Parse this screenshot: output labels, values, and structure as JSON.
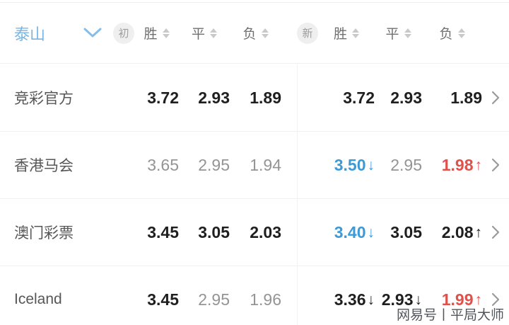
{
  "header": {
    "team": "泰山",
    "initial_badge": "初",
    "new_badge": "新",
    "columns": {
      "win": "胜",
      "draw": "平",
      "lose": "负"
    }
  },
  "rows": [
    {
      "name": "竞彩官方",
      "initial": [
        {
          "value": "3.72",
          "tone": "dark"
        },
        {
          "value": "2.93",
          "tone": "dark"
        },
        {
          "value": "1.89",
          "tone": "dark"
        }
      ],
      "new": [
        {
          "value": "3.72",
          "tone": "dark"
        },
        {
          "value": "2.93",
          "tone": "dark"
        },
        {
          "value": "1.89",
          "tone": "dark"
        }
      ]
    },
    {
      "name": "香港马会",
      "initial": [
        {
          "value": "3.65",
          "tone": "gray"
        },
        {
          "value": "2.95",
          "tone": "gray"
        },
        {
          "value": "1.94",
          "tone": "gray"
        }
      ],
      "new": [
        {
          "value": "3.50",
          "tone": "blue",
          "trend": "down"
        },
        {
          "value": "2.95",
          "tone": "gray"
        },
        {
          "value": "1.98",
          "tone": "red",
          "trend": "up"
        }
      ]
    },
    {
      "name": "澳门彩票",
      "initial": [
        {
          "value": "3.45",
          "tone": "dark"
        },
        {
          "value": "3.05",
          "tone": "dark"
        },
        {
          "value": "2.03",
          "tone": "dark"
        }
      ],
      "new": [
        {
          "value": "3.40",
          "tone": "blue",
          "trend": "down"
        },
        {
          "value": "3.05",
          "tone": "dark"
        },
        {
          "value": "2.08",
          "tone": "dark",
          "trend": "up-dark"
        }
      ]
    },
    {
      "name": "Iceland",
      "initial": [
        {
          "value": "3.45",
          "tone": "dark"
        },
        {
          "value": "2.95",
          "tone": "gray"
        },
        {
          "value": "1.96",
          "tone": "gray"
        }
      ],
      "new": [
        {
          "value": "3.36",
          "tone": "dark",
          "trend": "down-dark"
        },
        {
          "value": "2.93",
          "tone": "dark",
          "trend": "down-dark"
        },
        {
          "value": "1.99",
          "tone": "red",
          "trend": "up"
        }
      ]
    }
  ],
  "trend_arrows": {
    "down": "↓",
    "up": "↑"
  },
  "icons": {
    "team_dropdown": "chevron-down-icon",
    "sort": "sort-arrows-icon",
    "row_link": "chevron-right-icon"
  },
  "watermark": {
    "text": "网易号丨平局大师"
  },
  "colors": {
    "team_blue": "#79b5e4",
    "odds_drop_blue": "#3d9ad8",
    "odds_rise_red": "#e0514c",
    "dark_text": "#1f1f1f",
    "gray_text": "#949494",
    "label_text": "#575757",
    "header_text": "#6f6f6f",
    "badge_bg": "#efefef",
    "divider": "#f0f0f0"
  }
}
